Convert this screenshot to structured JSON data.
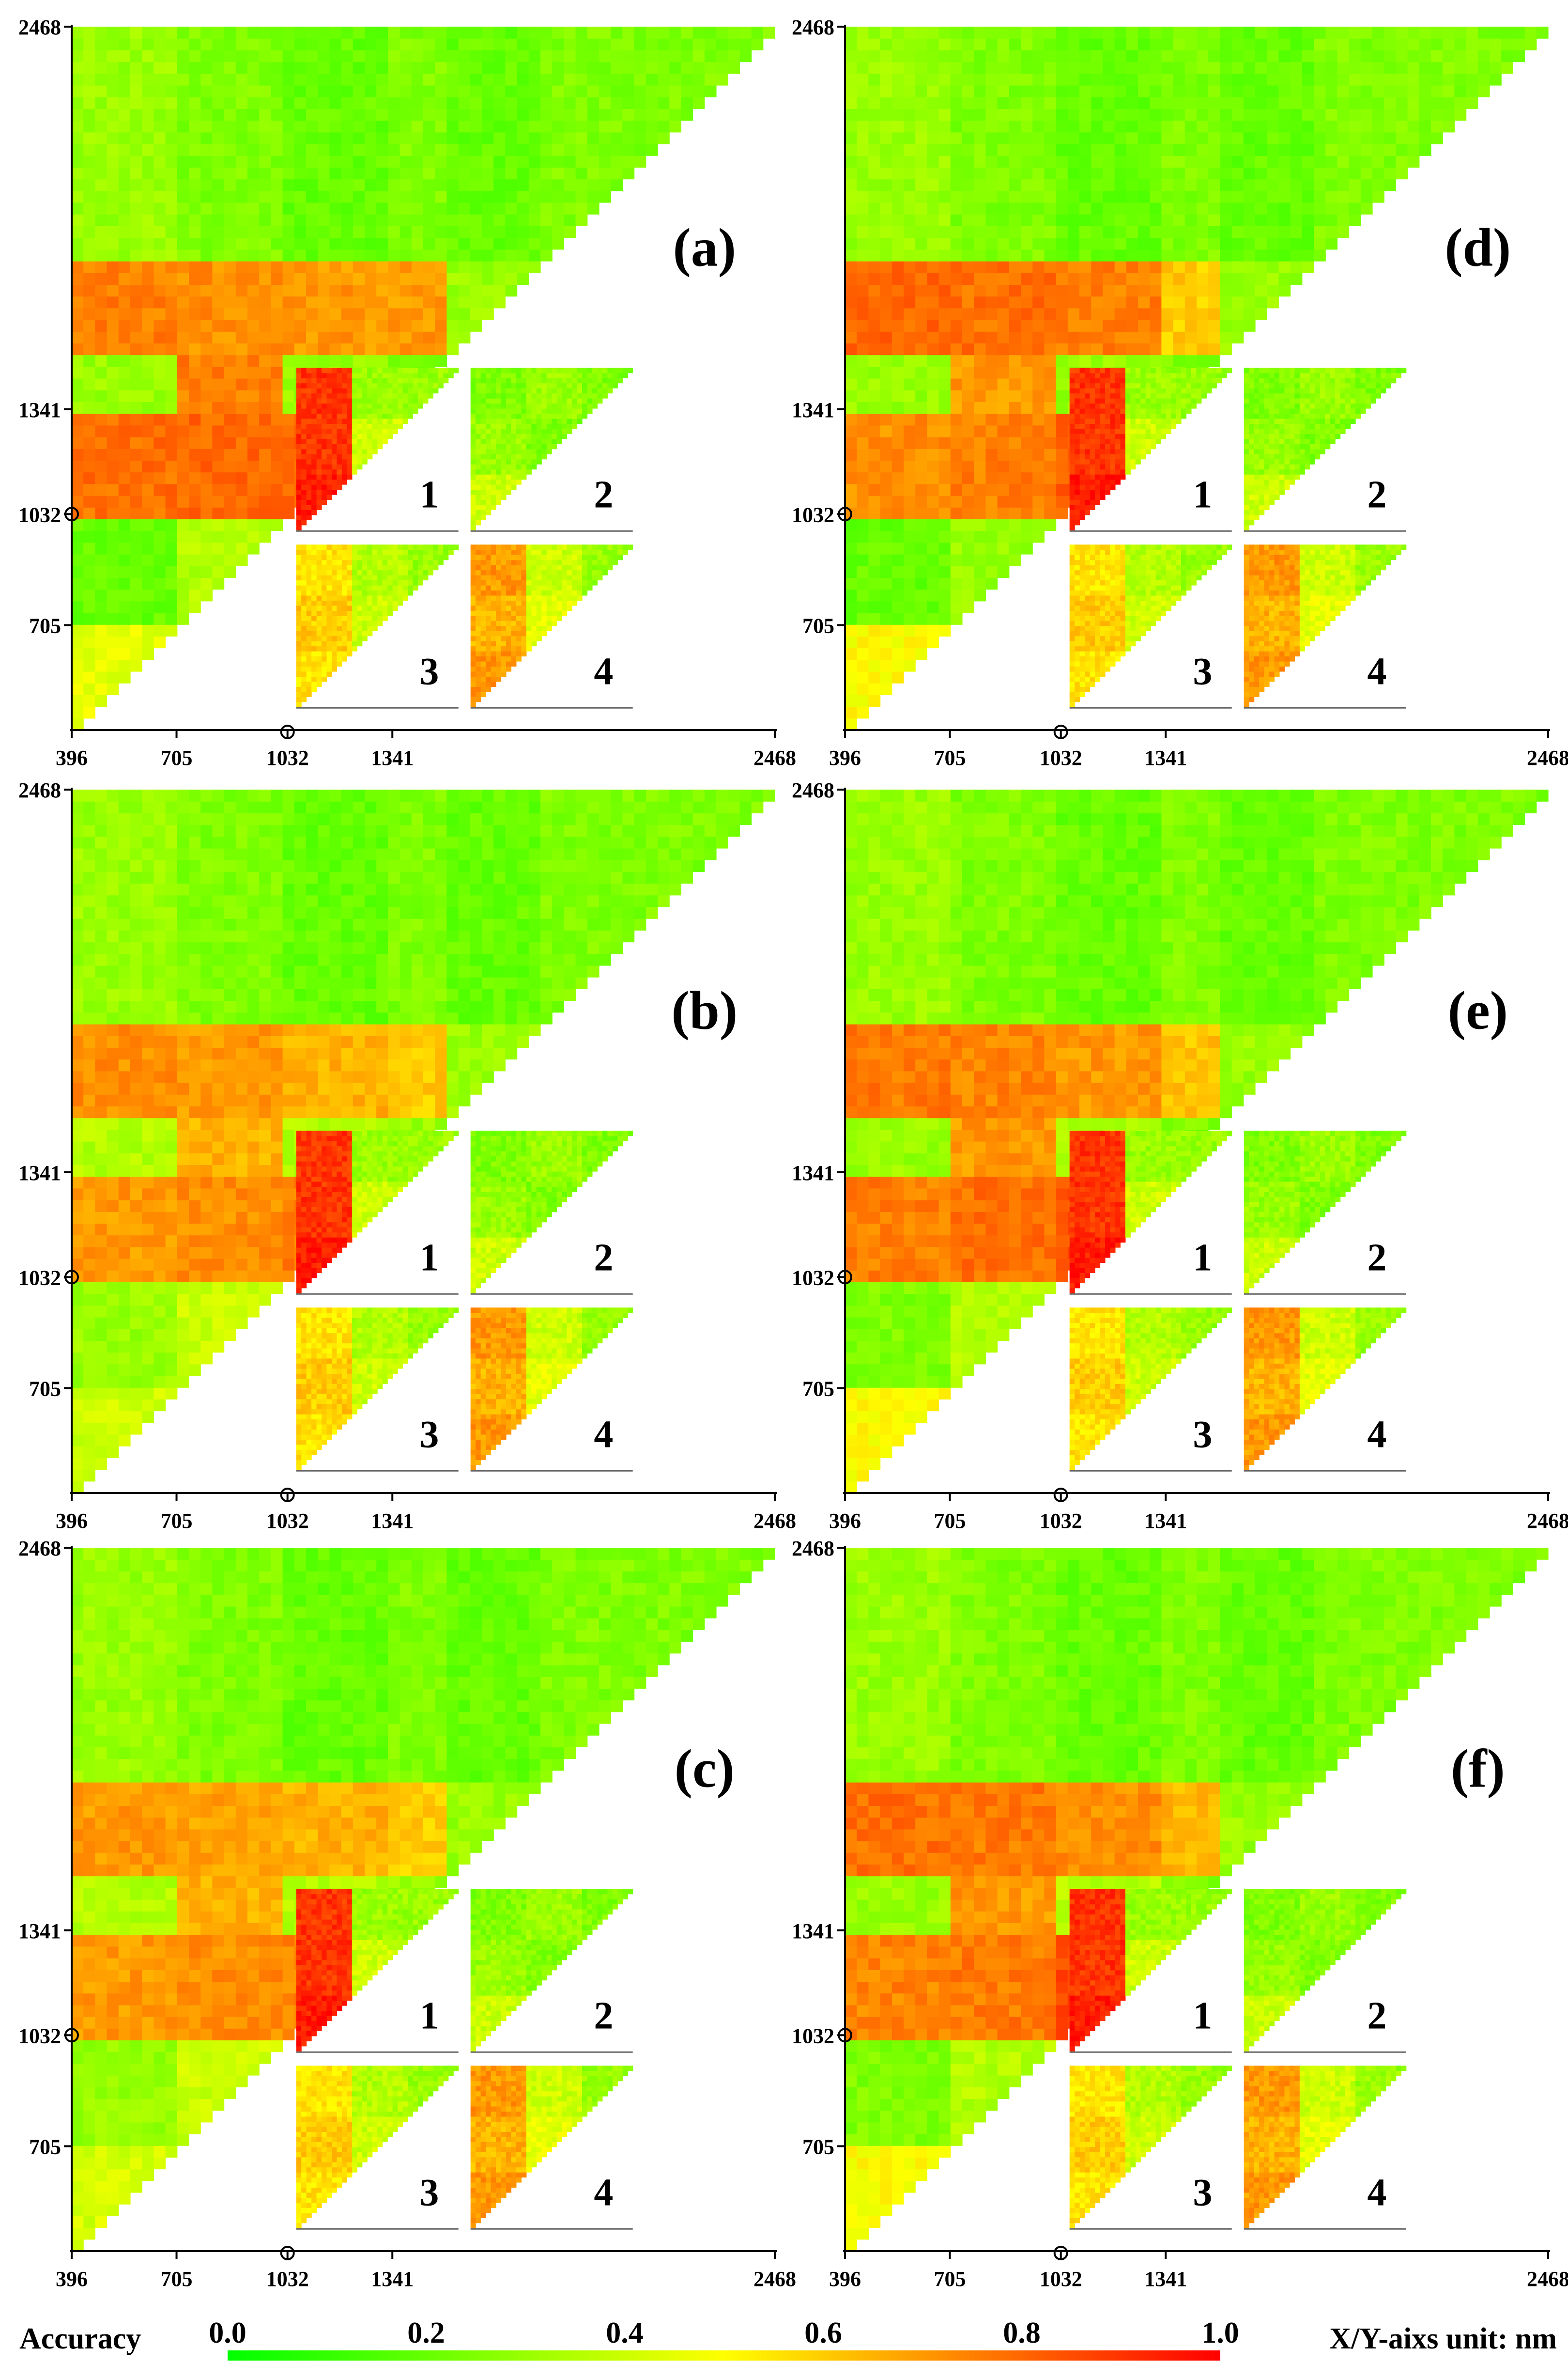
{
  "chart_data": {
    "type": "heatmap",
    "figure_note_units": "X/Y-aixs  unit: nm",
    "legend": {
      "title": "Accuracy",
      "ticks": [
        "0.0",
        "0.2",
        "0.4",
        "0.6",
        "0.8",
        "1.0"
      ],
      "range": [
        0.0,
        1.0
      ],
      "colormap": [
        "#00ff00",
        "#ffff00",
        "#ff0000"
      ]
    },
    "axis": {
      "x_ticks": [
        "396",
        "705",
        "1032",
        "1341",
        "2468"
      ],
      "y_ticks": [
        "705",
        "1032",
        "1341",
        "2468"
      ],
      "x_tick_values": [
        396,
        705,
        1032,
        1341,
        2468
      ],
      "y_tick_values": [
        705,
        1032,
        1341,
        2468
      ],
      "range": [
        396,
        2468
      ],
      "marked_wavelength": 1032
    },
    "panels": [
      {
        "label": "(a)",
        "insets": [
          "1",
          "2",
          "3",
          "4"
        ]
      },
      {
        "label": "(d)",
        "insets": [
          "1",
          "2",
          "3",
          "4"
        ]
      },
      {
        "label": "(b)",
        "insets": [
          "1",
          "2",
          "3",
          "4"
        ]
      },
      {
        "label": "(e)",
        "insets": [
          "1",
          "2",
          "3",
          "4"
        ]
      },
      {
        "label": "(c)",
        "insets": [
          "1",
          "2",
          "3",
          "4"
        ]
      },
      {
        "label": "(f)",
        "insets": [
          "1",
          "2",
          "3",
          "4"
        ]
      }
    ]
  }
}
